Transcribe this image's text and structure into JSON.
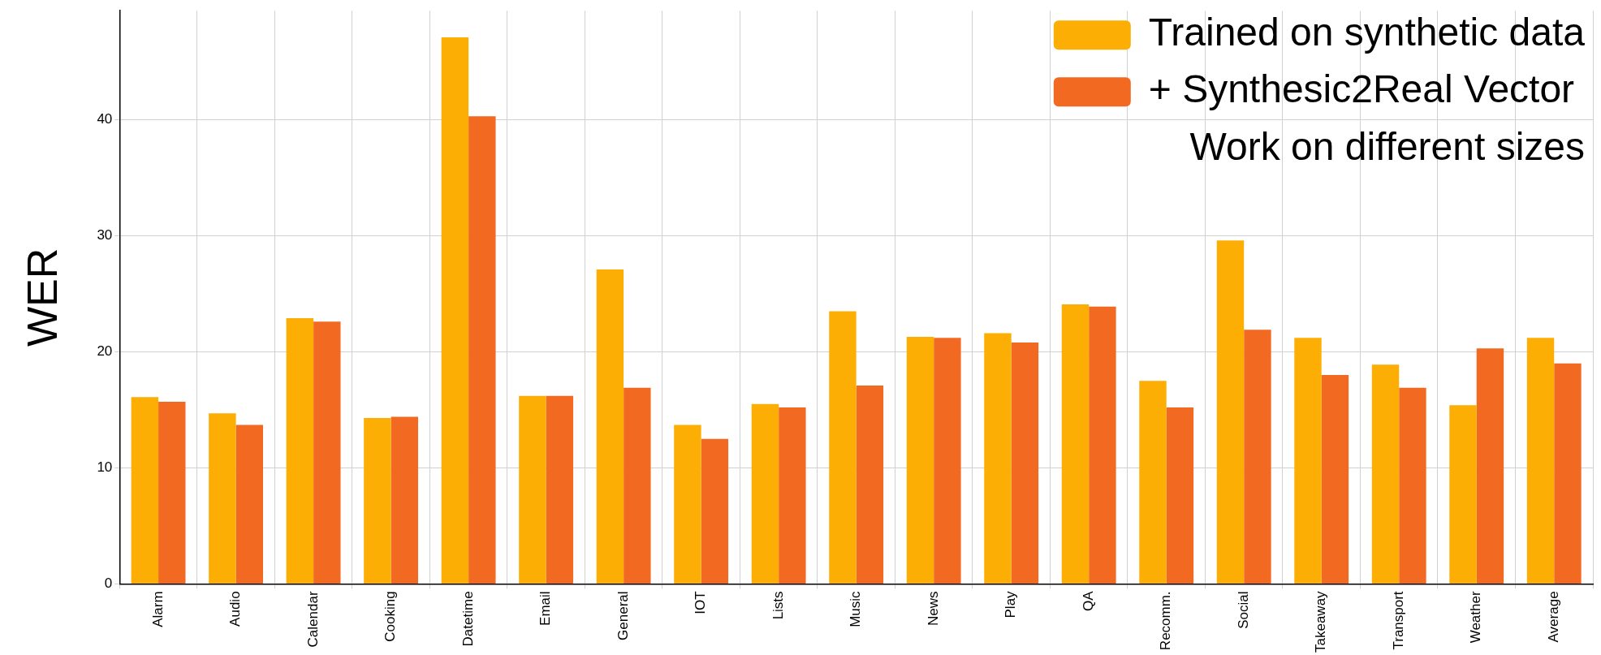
{
  "chart_data": {
    "type": "bar",
    "ylabel": "WER",
    "annotations": [
      "Work on different sizes"
    ],
    "categories": [
      "Alarm",
      "Audio",
      "Calendar",
      "Cooking",
      "Datetime",
      "Email",
      "General",
      "IOT",
      "Lists",
      "Music",
      "News",
      "Play",
      "QA",
      "Recomm.",
      "Social",
      "Takeaway",
      "Transport",
      "Weather",
      "Average"
    ],
    "series": [
      {
        "name": "Trained on synthetic data",
        "color": "#fcae05",
        "values": [
          16.1,
          14.7,
          22.9,
          14.3,
          47.1,
          16.2,
          27.1,
          13.7,
          15.5,
          23.5,
          21.3,
          21.6,
          24.1,
          17.5,
          29.6,
          21.2,
          18.9,
          15.4,
          21.2
        ]
      },
      {
        "name": "+ Synthesic2Real Vector",
        "color": "#f26a22",
        "values": [
          15.7,
          13.7,
          22.6,
          14.4,
          40.3,
          16.2,
          16.9,
          12.5,
          15.2,
          17.1,
          21.2,
          20.8,
          23.9,
          15.2,
          21.9,
          18.0,
          16.9,
          20.3,
          19.0
        ]
      }
    ],
    "ylim": [
      0,
      49.4
    ],
    "yticks": [
      0,
      10,
      20,
      30,
      40
    ],
    "grid": true,
    "legend": "top right"
  }
}
